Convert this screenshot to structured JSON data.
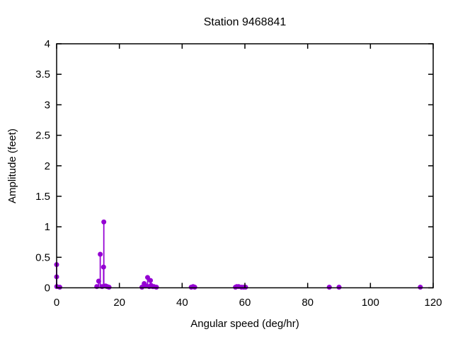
{
  "title": "Station 9468841",
  "chart_data": {
    "type": "scatter",
    "style": "points-with-impulses",
    "title": "Station 9468841",
    "xlabel": "Angular speed (deg/hr)",
    "ylabel": "Amplitude (feet)",
    "xlim": [
      0,
      120
    ],
    "ylim": [
      0,
      4
    ],
    "x_ticks": [
      0,
      20,
      40,
      60,
      80,
      100,
      120
    ],
    "x_tick_labels": [
      "0",
      "20",
      "40",
      "60",
      "80",
      "100",
      "120"
    ],
    "y_ticks": [
      0,
      0.5,
      1,
      1.5,
      2,
      2.5,
      3,
      3.5,
      4
    ],
    "y_tick_labels": [
      "0",
      "0.5",
      "1",
      "1.5",
      "2",
      "2.5",
      "3",
      "3.5",
      "4"
    ],
    "grid": false,
    "legend": false,
    "tick_style": "inward-mirrored",
    "point_color": "#9400d3",
    "border_color": "#000000",
    "points": [
      [
        0.0,
        0.38
      ],
      [
        0.0,
        0.18
      ],
      [
        0.04,
        0.02
      ],
      [
        1.0,
        0.01
      ],
      [
        12.8,
        0.02
      ],
      [
        13.4,
        0.11
      ],
      [
        13.9,
        0.55
      ],
      [
        14.5,
        0.02
      ],
      [
        14.96,
        0.34
      ],
      [
        15.04,
        1.08
      ],
      [
        15.6,
        0.03
      ],
      [
        16.1,
        0.02
      ],
      [
        16.7,
        0.01
      ],
      [
        27.2,
        0.01
      ],
      [
        27.9,
        0.07
      ],
      [
        28.4,
        0.03
      ],
      [
        28.98,
        0.17
      ],
      [
        29.5,
        0.02
      ],
      [
        29.9,
        0.12
      ],
      [
        30.1,
        0.04
      ],
      [
        30.6,
        0.02
      ],
      [
        31.0,
        0.02
      ],
      [
        31.8,
        0.01
      ],
      [
        42.9,
        0.01
      ],
      [
        43.5,
        0.02
      ],
      [
        44.0,
        0.01
      ],
      [
        57.0,
        0.01
      ],
      [
        57.4,
        0.02
      ],
      [
        58.0,
        0.02
      ],
      [
        58.9,
        0.01
      ],
      [
        59.6,
        0.01
      ],
      [
        60.2,
        0.01
      ],
      [
        86.9,
        0.01
      ],
      [
        90.0,
        0.01
      ],
      [
        115.9,
        0.01
      ]
    ]
  }
}
